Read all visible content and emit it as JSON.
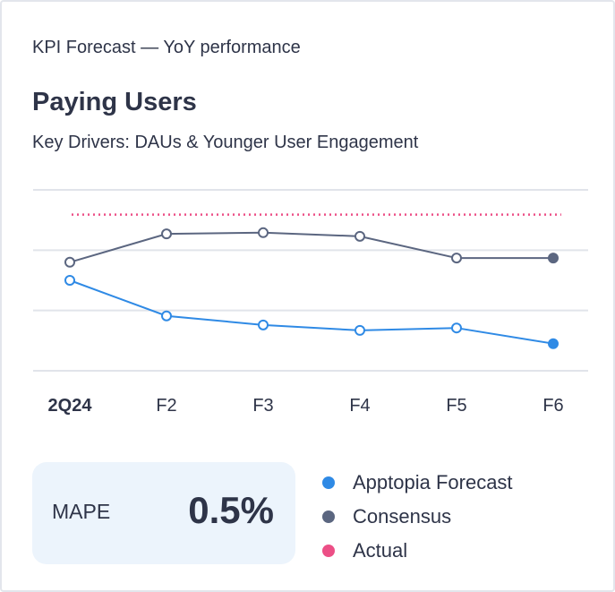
{
  "card": {
    "kicker": "KPI Forecast — YoY performance",
    "title": "Paying Users",
    "subtitle": "Key Drivers: DAUs & Younger User Engagement"
  },
  "mape": {
    "label": "MAPE",
    "value": "0.5%"
  },
  "chart_data": {
    "type": "line",
    "categories": [
      "2Q24",
      "F2",
      "F3",
      "F4",
      "F5",
      "F6"
    ],
    "ylim": [
      0,
      3
    ],
    "grid": true,
    "y_tick_labels_shown": false,
    "legend_placement": "bottom-right",
    "series": [
      {
        "name": "Apptopia Forecast",
        "color": "#2f8ae5",
        "values": [
          1.5,
          0.91,
          0.76,
          0.67,
          0.71,
          0.45
        ]
      },
      {
        "name": "Consensus",
        "color": "#5b6680",
        "values": [
          1.8,
          2.27,
          2.29,
          2.23,
          1.87,
          1.87
        ]
      },
      {
        "name": "Actual",
        "color": "#ec4f86",
        "style": "dotted",
        "constant": 2.59
      }
    ]
  }
}
